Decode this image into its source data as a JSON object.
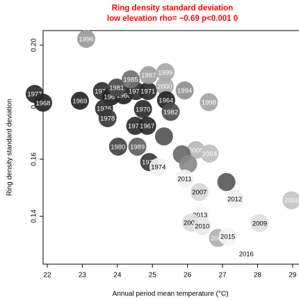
{
  "chart_data": {
    "type": "scatter",
    "title": "Ring density standard deviation",
    "subtitle": "low elevation rho= −0.69 p<0.001 0",
    "x_label": "Annual period mean temperature (°C)",
    "y_label": "Ring density standard deviation",
    "xlim": [
      21.88,
      29.5
    ],
    "ylim": [
      0.1232,
      0.2051
    ],
    "xticks": [
      22,
      23,
      24,
      25,
      26,
      27,
      28,
      29
    ],
    "yticks": [
      {
        "value": 0.14,
        "label": "0.14"
      },
      {
        "value": 0.16,
        "label": "0.16"
      },
      {
        "value": 0.18,
        "label": "0.18"
      },
      {
        "value": 0.2,
        "label": "0.20"
      }
    ],
    "title_color": "#ff0000",
    "points": [
      {
        "label": "1996",
        "x": 23.11,
        "y": 0.2022,
        "color": "#9a9a9a"
      },
      {
        "label": "1977",
        "x": 21.64,
        "y": 0.1829,
        "color": "#2a2a2a"
      },
      {
        "label": "1968",
        "x": 21.88,
        "y": 0.1798,
        "color": "#262626"
      },
      {
        "label": "1969",
        "x": 22.93,
        "y": 0.1805,
        "color": "#262626"
      },
      {
        "label": "1979",
        "x": 23.56,
        "y": 0.1839,
        "color": "#303030"
      },
      {
        "label": "1962",
        "x": 23.82,
        "y": 0.182,
        "color": "#222222"
      },
      {
        "label": "1966",
        "x": 24.18,
        "y": 0.1824,
        "color": "#262626"
      },
      {
        "label": "1973",
        "x": 24.53,
        "y": 0.1839,
        "color": "#2e2e2e"
      },
      {
        "label": "1971",
        "x": 24.87,
        "y": 0.1839,
        "color": "#2a2a2a"
      },
      {
        "label": "1981",
        "x": 23.98,
        "y": 0.1851,
        "color": "#4a4a4a"
      },
      {
        "label": "1985",
        "x": 24.38,
        "y": 0.188,
        "color": "#707070"
      },
      {
        "label": "1997",
        "x": 24.89,
        "y": 0.1895,
        "color": "#a0a0a0"
      },
      {
        "label": "1999",
        "x": 25.37,
        "y": 0.1905,
        "color": "#a8a8a8"
      },
      {
        "label": "2000",
        "x": 25.35,
        "y": 0.1856,
        "color": "#aaaaaa"
      },
      {
        "label": "1994",
        "x": 25.92,
        "y": 0.1841,
        "color": "#909090"
      },
      {
        "label": "1998",
        "x": 26.61,
        "y": 0.18,
        "color": "#a5a5a5"
      },
      {
        "label": "1964",
        "x": 25.39,
        "y": 0.1807,
        "color": "#242424"
      },
      {
        "label": "1970",
        "x": 24.73,
        "y": 0.1776,
        "color": "#2a2a2a"
      },
      {
        "label": "1976",
        "x": 23.62,
        "y": 0.1778,
        "color": "#303030"
      },
      {
        "label": "1978",
        "x": 23.72,
        "y": 0.1744,
        "color": "#383838"
      },
      {
        "label": "1982",
        "x": 25.52,
        "y": 0.1766,
        "color": "#4e4e4e"
      },
      {
        "label": "1980",
        "x": 24.02,
        "y": 0.1644,
        "color": "#444444"
      },
      {
        "label": "1989",
        "x": 24.57,
        "y": 0.1644,
        "color": "#606060"
      },
      {
        "label": "1975",
        "x": 24.91,
        "y": 0.159,
        "color": "#3a3a3a"
      },
      {
        "label": "1974",
        "x": 25.17,
        "y": 0.1573,
        "color": "#f0f0f0"
      },
      {
        "label": "1972",
        "x": 24.51,
        "y": 0.1717,
        "color": "#2c2c2c"
      },
      {
        "label": "1967",
        "x": 24.85,
        "y": 0.1717,
        "color": "#2a2a2a"
      },
      {
        "label": null,
        "x": 25.33,
        "y": 0.168,
        "color": "#555555"
      },
      {
        "label": "2005",
        "x": 26.24,
        "y": 0.1632,
        "color": "#b8b8b8"
      },
      {
        "label": "2004",
        "x": 26.63,
        "y": 0.162,
        "color": "#c0c0c0"
      },
      {
        "label": null,
        "x": 25.84,
        "y": 0.1617,
        "color": "#6a6a6a"
      },
      {
        "label": null,
        "x": 26.02,
        "y": 0.1583,
        "color": "#8a8a8a"
      },
      {
        "label": "2011",
        "x": 25.92,
        "y": 0.1532,
        "color": "#f2f2f2"
      },
      {
        "label": "2007",
        "x": 26.34,
        "y": 0.1485,
        "color": "#d8d8d8"
      },
      {
        "label": null,
        "x": 27.11,
        "y": 0.152,
        "color": "#5a5a5a"
      },
      {
        "label": "2012",
        "x": 27.35,
        "y": 0.1461,
        "color": "#f0f0f0"
      },
      {
        "label": "2003",
        "x": 28.97,
        "y": 0.1456,
        "color": "#c4c4c4"
      },
      {
        "label": "2013",
        "x": 26.36,
        "y": 0.1405,
        "color": "#f4f4f4"
      },
      {
        "label": "2008",
        "x": 26.1,
        "y": 0.1378,
        "color": "#dcdcdc"
      },
      {
        "label": "2010",
        "x": 26.42,
        "y": 0.1366,
        "color": "#e8e8e8"
      },
      {
        "label": "2009",
        "x": 28.06,
        "y": 0.1376,
        "color": "#e0e0e0"
      },
      {
        "label": "2006",
        "x": 26.87,
        "y": 0.1324,
        "color": "#b0b0b0"
      },
      {
        "label": "2015",
        "x": 27.15,
        "y": 0.1329,
        "color": "#f4f4f4"
      },
      {
        "label": "2016",
        "x": 27.68,
        "y": 0.1268,
        "color": "#ffffff"
      }
    ]
  }
}
